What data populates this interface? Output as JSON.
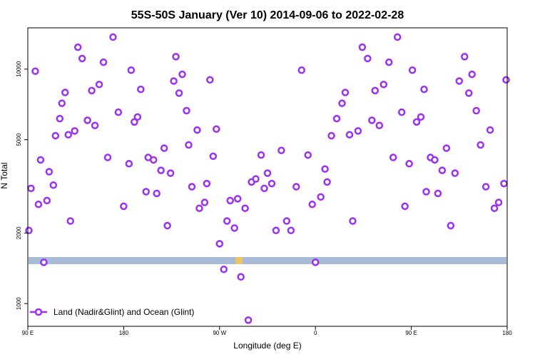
{
  "chart_data": {
    "type": "scatter",
    "title": "55S-50S January (Ver 10)   2014-09-06 to 2022-02-28",
    "xlabel": "Longitude (deg E)",
    "ylabel": "N Total",
    "xlim": [
      90,
      540
    ],
    "ylim": [
      800,
      15000
    ],
    "ylog": true,
    "x_ticks": [
      {
        "value": 90,
        "label": "90 E"
      },
      {
        "value": 180,
        "label": "180"
      },
      {
        "value": 270,
        "label": "90 W"
      },
      {
        "value": 360,
        "label": "0"
      },
      {
        "value": 450,
        "label": "90 E"
      },
      {
        "value": 540,
        "label": "180"
      }
    ],
    "y_ticks": [
      {
        "value": 1000,
        "label": "1000"
      },
      {
        "value": 2000,
        "label": "2000"
      },
      {
        "value": 5000,
        "label": "5000"
      },
      {
        "value": 10000,
        "label": "10000"
      }
    ],
    "legend": {
      "label": "Land (Nadir&Glint) and Ocean (Glint)",
      "position": "bottom-left"
    },
    "marker_color": "#9B30F0",
    "band_color": "#A8BCD8",
    "band_highlight_color": "#F5C84C",
    "series": [
      {
        "name": "Land (Nadir&Glint) and Ocean (Glint)",
        "x": [
          91,
          93,
          97,
          100,
          102,
          105,
          108,
          110,
          114,
          116,
          120,
          122,
          125,
          128,
          130,
          134,
          137,
          141,
          146,
          150,
          153,
          157,
          161,
          165,
          170,
          175,
          180,
          185,
          187,
          190,
          193,
          196,
          201,
          203,
          208,
          211,
          215,
          218,
          221,
          224,
          227,
          229,
          232,
          235,
          239,
          241,
          244,
          249,
          251,
          256,
          258,
          261,
          264,
          267,
          270,
          274,
          277,
          280,
          284,
          287,
          290,
          294,
          297,
          300,
          304,
          309,
          312,
          315,
          319,
          323,
          328,
          333,
          337,
          342,
          347,
          353,
          357,
          360,
          365,
          369,
          371,
          375,
          380,
          385,
          388,
          392,
          395,
          400,
          404,
          409,
          413,
          416,
          420,
          424,
          429,
          433,
          437,
          441,
          444,
          448,
          451,
          455,
          459,
          462,
          464,
          468,
          472,
          475,
          479,
          483,
          487,
          491,
          495,
          500,
          504,
          507,
          511,
          515,
          520,
          524,
          528,
          532,
          537,
          539
        ],
        "y": [
          2050,
          3100,
          9800,
          2650,
          4100,
          1500,
          2750,
          3650,
          3200,
          5200,
          6150,
          7150,
          7950,
          5250,
          2250,
          5450,
          12400,
          11100,
          6050,
          8100,
          5750,
          8600,
          10700,
          4200,
          13700,
          6550,
          2600,
          3950,
          9900,
          5950,
          6250,
          8200,
          3000,
          4200,
          4100,
          2950,
          3700,
          4600,
          2150,
          3600,
          8900,
          11300,
          7900,
          9500,
          6650,
          4750,
          3150,
          5500,
          2550,
          2700,
          3250,
          9000,
          4250,
          5550,
          1800,
          1400,
          2250,
          2750,
          2100,
          2800,
          1300,
          2550,
          850,
          3300,
          3400,
          4300,
          3100,
          3600,
          3250,
          2050,
          4500,
          2250,
          2050,
          3150,
          9900,
          4300,
          2650,
          1500,
          2850,
          3750,
          3300,
          5200,
          6150,
          7150,
          7950,
          5250,
          2250,
          5450,
          12400,
          11100,
          6050,
          8100,
          5750,
          8600,
          10700,
          4200,
          13700,
          6550,
          2600,
          3950,
          9900,
          5950,
          6250,
          8200,
          3000,
          4200,
          4100,
          2950,
          3700,
          4600,
          2150,
          3600,
          8900,
          11300,
          7900,
          9500,
          6650,
          4750,
          3150,
          5500,
          2550,
          2700,
          3250,
          9000
        ]
      }
    ]
  }
}
